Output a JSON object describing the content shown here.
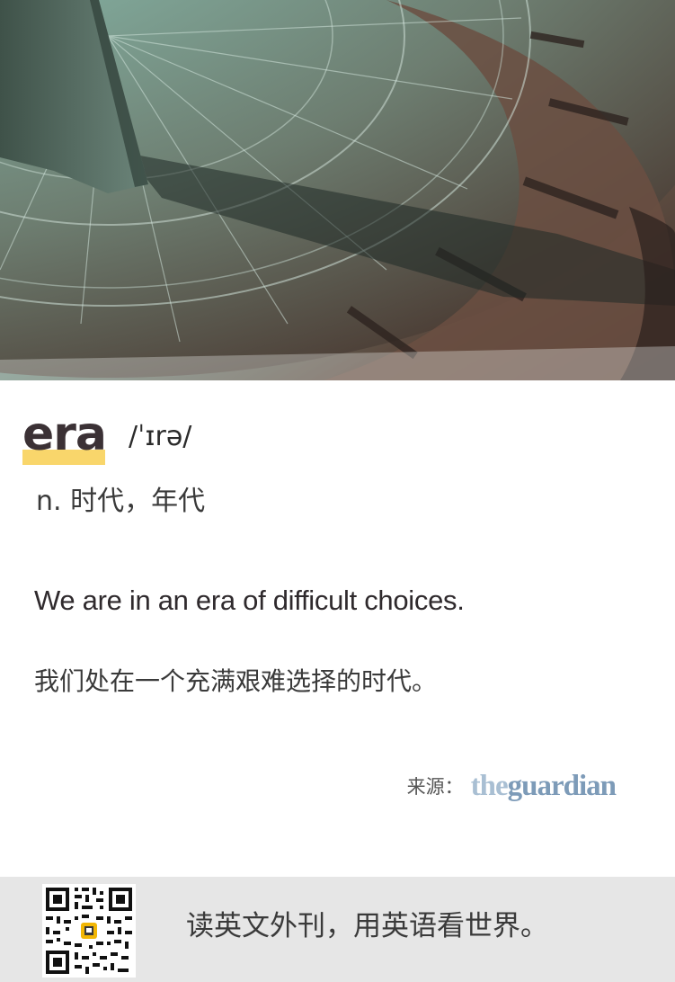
{
  "card": {
    "word": "era",
    "phonetic": "/ˈɪrə/",
    "definition": "n. 时代，年代",
    "example_en": "We are in an era of difficult choices.",
    "example_zh": "我们处在一个充满艰难选择的时代。",
    "source_label": "来源：",
    "source_logo": {
      "prefix": "the",
      "name": "guardian"
    },
    "hero_image": "sundial-photo"
  },
  "footer": {
    "qr_code": "qr-code",
    "slogan": "读英文外刊，用英语看世界。"
  },
  "colors": {
    "highlight": "#f9d66b",
    "word": "#3b3135",
    "footer_bg": "#e6e6e6",
    "guardian": "#7d9bb8"
  }
}
